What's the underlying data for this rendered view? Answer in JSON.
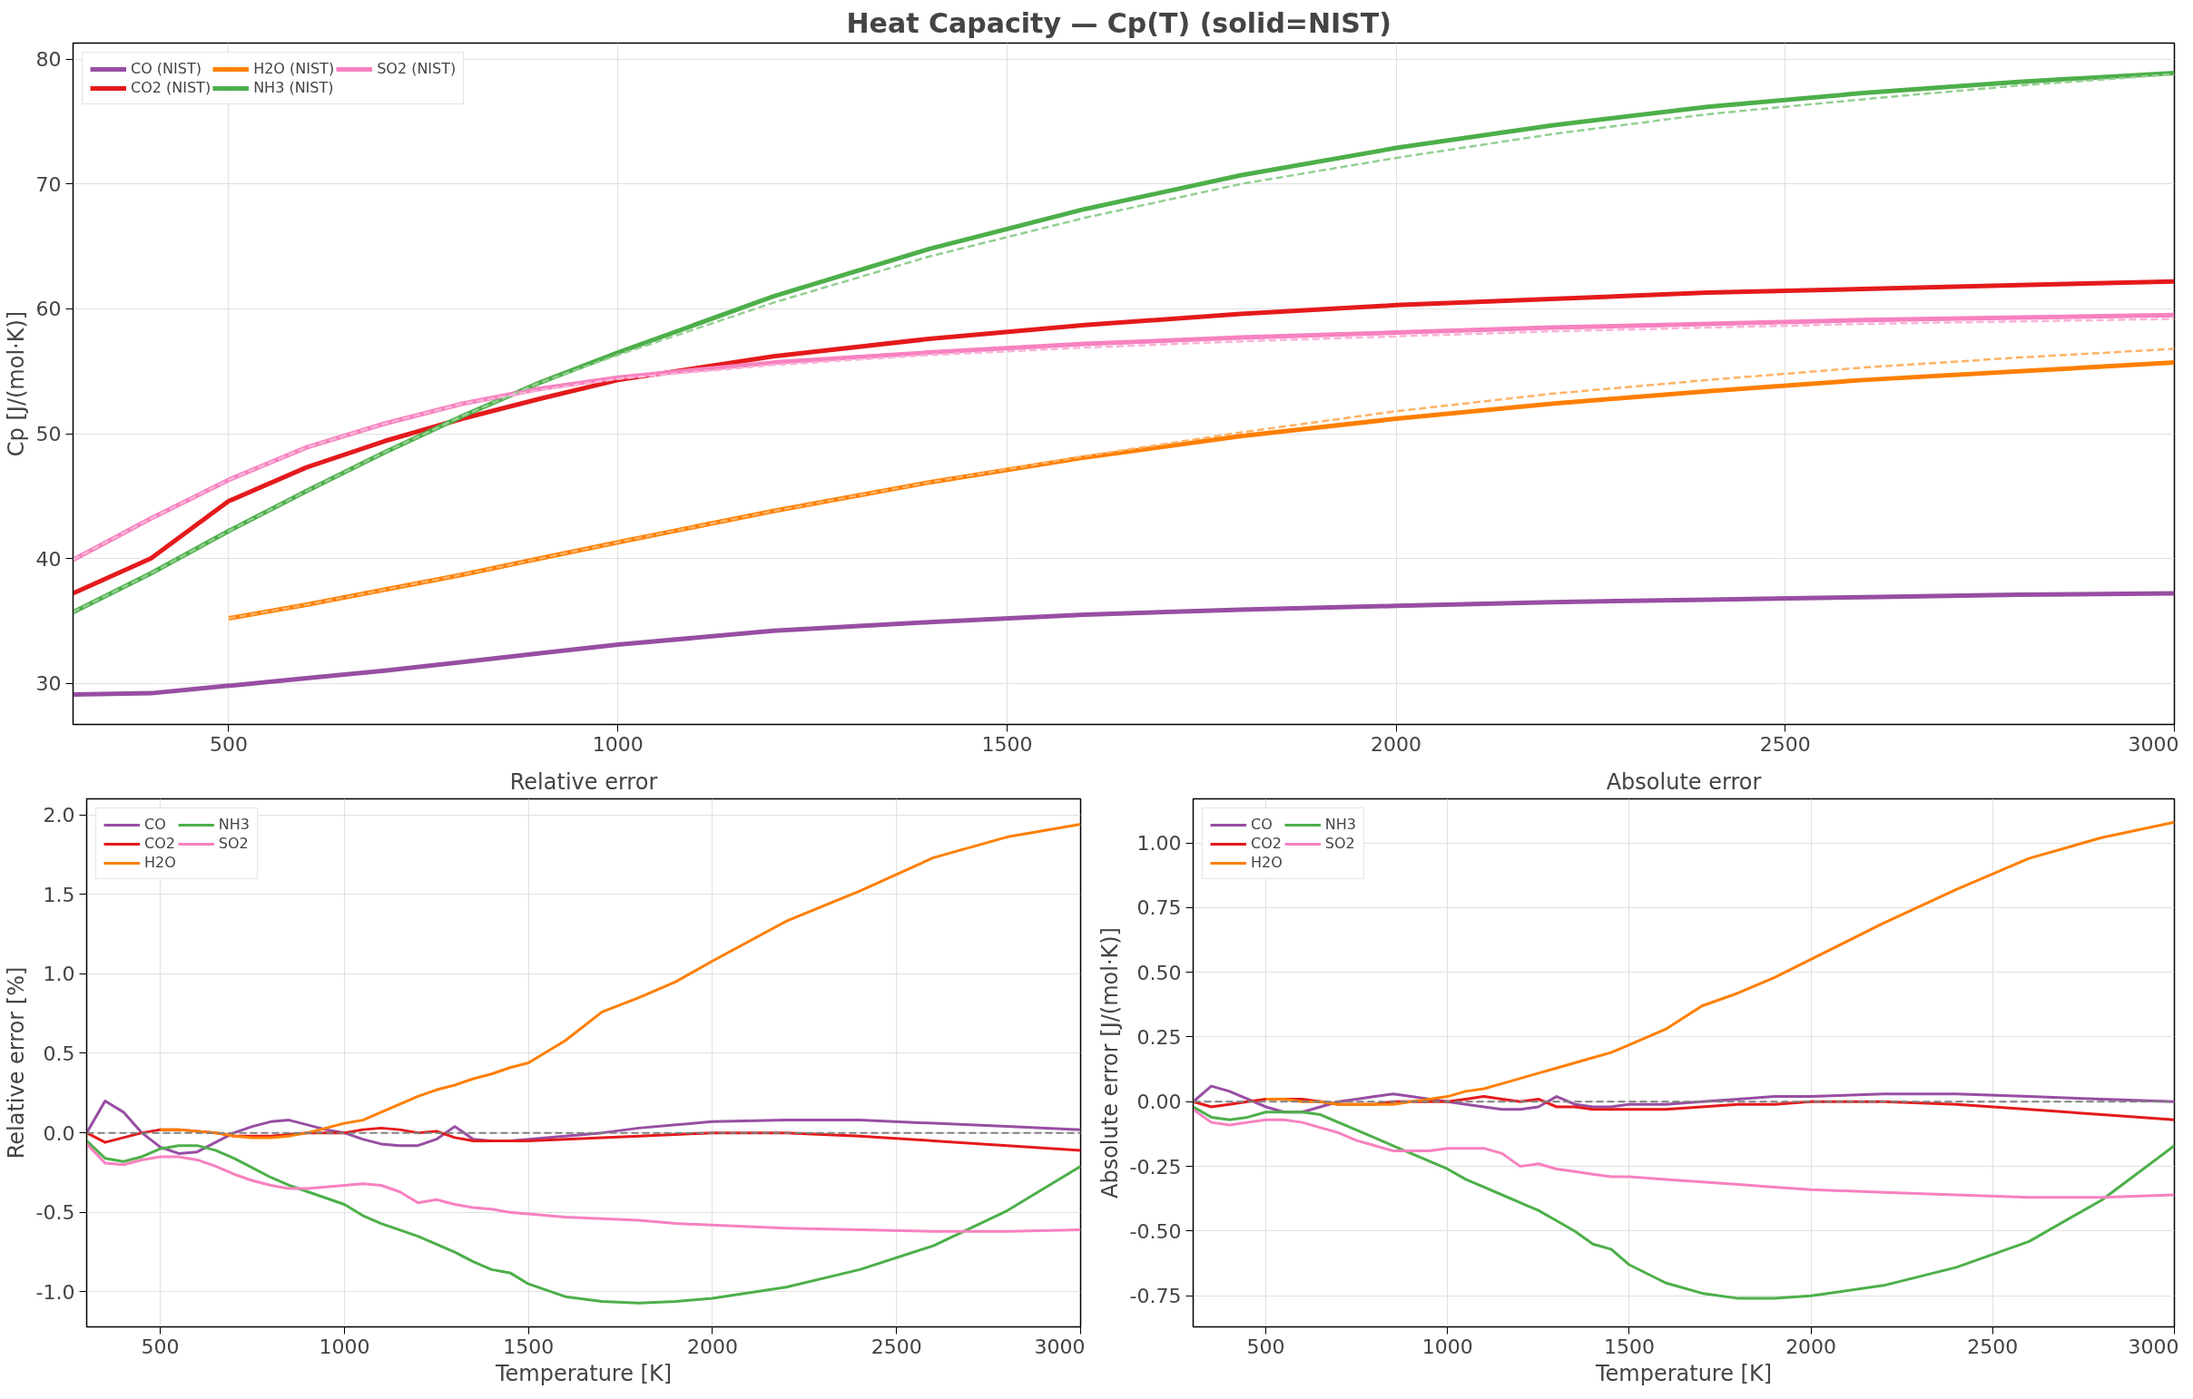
{
  "chart_data": [
    {
      "type": "line",
      "title": "Heat Capacity — Cp(T)  (solid=NIST)",
      "ylabel": "Cp [J/(mol·K)]",
      "x": [
        300,
        400,
        500,
        600,
        700,
        800,
        900,
        1000,
        1200,
        1400,
        1600,
        1800,
        2000,
        2200,
        2400,
        2600,
        2800,
        3000
      ],
      "xlim": [
        300,
        3000
      ],
      "ylim": [
        26.7,
        81.3
      ],
      "xticks": [
        500,
        1000,
        1500,
        2000,
        2500,
        3000
      ],
      "yticks": [
        30,
        40,
        50,
        60,
        70,
        80
      ],
      "grid": true,
      "legend": "top left",
      "line_style": "solid",
      "series": [
        {
          "name": "CO (NIST)",
          "color": "#984ea3",
          "values": [
            29.1,
            29.2,
            29.8,
            30.4,
            31.0,
            31.7,
            32.4,
            33.1,
            34.2,
            34.9,
            35.5,
            35.9,
            36.2,
            36.5,
            36.7,
            36.9,
            37.1,
            37.2
          ]
        },
        {
          "name": "CO2 (NIST)",
          "color": "#e41a1c",
          "values": [
            37.2,
            40.0,
            44.6,
            47.3,
            49.4,
            51.2,
            52.8,
            54.3,
            56.2,
            57.6,
            58.7,
            59.6,
            60.3,
            60.8,
            61.3,
            61.6,
            61.9,
            62.2
          ]
        },
        {
          "name": "H2O (NIST)",
          "color": "#ff7f00",
          "values": [
            null,
            null,
            35.2,
            36.3,
            37.5,
            38.7,
            40.0,
            41.3,
            43.8,
            46.1,
            48.1,
            49.8,
            51.2,
            52.4,
            53.4,
            54.3,
            55.0,
            55.7
          ]
        },
        {
          "name": "NH3 (NIST)",
          "color": "#4daf4a",
          "values": [
            35.7,
            38.8,
            42.2,
            45.4,
            48.5,
            51.4,
            54.1,
            56.5,
            61.0,
            64.8,
            68.0,
            70.7,
            72.9,
            74.7,
            76.2,
            77.3,
            78.2,
            78.9
          ]
        },
        {
          "name": "SO2 (NIST)",
          "color": "#f781bf",
          "values": [
            39.9,
            43.2,
            46.3,
            48.9,
            50.8,
            52.4,
            53.6,
            54.5,
            55.7,
            56.5,
            57.2,
            57.7,
            58.1,
            58.5,
            58.8,
            59.1,
            59.3,
            59.5
          ]
        },
        {
          "color": "#ffb266",
          "line_style": "dashed",
          "values": [
            null,
            null,
            35.2,
            36.3,
            37.5,
            38.7,
            40.0,
            41.3,
            43.8,
            46.1,
            48.2,
            50.1,
            51.8,
            53.2,
            54.3,
            55.3,
            56.1,
            56.8
          ]
        },
        {
          "color": "#94cf92",
          "line_style": "dashed",
          "values": [
            35.7,
            38.8,
            42.2,
            45.4,
            48.5,
            51.4,
            54.1,
            56.3,
            60.5,
            64.2,
            67.3,
            70.0,
            72.1,
            74.0,
            75.6,
            76.8,
            77.9,
            78.8
          ]
        },
        {
          "color": "#fab3d9",
          "line_style": "dashed",
          "values": [
            39.9,
            43.2,
            46.3,
            48.9,
            50.8,
            52.4,
            53.5,
            54.4,
            55.5,
            56.3,
            56.9,
            57.4,
            57.8,
            58.2,
            58.5,
            58.8,
            59.0,
            59.2
          ]
        }
      ]
    },
    {
      "type": "line",
      "title": "Relative error",
      "xlabel": "Temperature [K]",
      "ylabel": "Relative error [%]",
      "x": [
        300,
        350,
        400,
        450,
        500,
        550,
        600,
        650,
        700,
        750,
        800,
        850,
        900,
        950,
        1000,
        1050,
        1100,
        1150,
        1200,
        1250,
        1300,
        1350,
        1400,
        1450,
        1500,
        1600,
        1700,
        1800,
        1900,
        2000,
        2200,
        2400,
        2600,
        2800,
        3000
      ],
      "xlim": [
        300,
        3000
      ],
      "ylim": [
        -1.22,
        2.1
      ],
      "xticks": [
        500,
        1000,
        1500,
        2000,
        2500,
        3000
      ],
      "yticks": [
        {
          "value": -1.0,
          "label": "-1.0"
        },
        {
          "value": -0.5,
          "label": "-0.5"
        },
        {
          "value": 0,
          "label": "0.0"
        },
        {
          "value": 0.5,
          "label": "0.5"
        },
        {
          "value": 1,
          "label": "1.0"
        },
        {
          "value": 1.5,
          "label": "1.5"
        },
        {
          "value": 2,
          "label": "2.0"
        }
      ],
      "grid": true,
      "legend": "top left",
      "line_style": "solid",
      "ref_lines": [
        {
          "axis": "y",
          "value": 0,
          "color": "#808080",
          "line_style": "dashed"
        }
      ],
      "series": [
        {
          "name": "CO",
          "color": "#984ea3",
          "values": [
            0,
            0.2,
            0.13,
            0.0,
            -0.09,
            -0.13,
            -0.12,
            -0.06,
            0.0,
            0.04,
            0.07,
            0.08,
            0.05,
            0.02,
            0.0,
            -0.04,
            -0.07,
            -0.08,
            -0.08,
            -0.04,
            0.04,
            -0.04,
            -0.05,
            -0.05,
            -0.04,
            -0.02,
            0.0,
            0.03,
            0.05,
            0.07,
            0.08,
            0.08,
            0.06,
            0.04,
            0.02
          ]
        },
        {
          "name": "CO2",
          "color": "#e41a1c",
          "values": [
            0,
            -0.06,
            -0.03,
            0.0,
            0.02,
            0.02,
            0.01,
            0.0,
            -0.02,
            -0.02,
            -0.02,
            -0.01,
            0.0,
            0.0,
            0.0,
            0.02,
            0.03,
            0.02,
            0.0,
            0.01,
            -0.03,
            -0.05,
            -0.05,
            -0.05,
            -0.05,
            -0.04,
            -0.03,
            -0.02,
            -0.01,
            0.0,
            0.0,
            -0.02,
            -0.05,
            -0.08,
            -0.11
          ]
        },
        {
          "name": "H2O",
          "color": "#ff7f00",
          "values": [
            null,
            null,
            null,
            null,
            0.02,
            0.02,
            0.01,
            0.0,
            -0.02,
            -0.03,
            -0.03,
            -0.02,
            0.0,
            0.03,
            0.06,
            0.08,
            0.13,
            0.18,
            0.23,
            0.27,
            0.3,
            0.34,
            0.37,
            0.41,
            0.44,
            0.58,
            0.76,
            0.85,
            0.95,
            1.08,
            1.33,
            1.52,
            1.73,
            1.86,
            1.94
          ]
        },
        {
          "name": "NH3",
          "color": "#4daf4a",
          "values": [
            -0.05,
            -0.16,
            -0.18,
            -0.15,
            -0.1,
            -0.08,
            -0.08,
            -0.11,
            -0.16,
            -0.22,
            -0.28,
            -0.33,
            -0.37,
            -0.41,
            -0.45,
            -0.52,
            -0.57,
            -0.61,
            -0.65,
            -0.7,
            -0.75,
            -0.81,
            -0.86,
            -0.88,
            -0.95,
            -1.03,
            -1.06,
            -1.07,
            -1.06,
            -1.04,
            -0.97,
            -0.86,
            -0.71,
            -0.49,
            -0.21
          ]
        },
        {
          "name": "SO2",
          "color": "#f781bf",
          "values": [
            -0.07,
            -0.19,
            -0.2,
            -0.17,
            -0.15,
            -0.15,
            -0.17,
            -0.21,
            -0.26,
            -0.3,
            -0.33,
            -0.35,
            -0.35,
            -0.34,
            -0.33,
            -0.32,
            -0.33,
            -0.37,
            -0.44,
            -0.42,
            -0.45,
            -0.47,
            -0.48,
            -0.5,
            -0.51,
            -0.53,
            -0.54,
            -0.55,
            -0.57,
            -0.58,
            -0.6,
            -0.61,
            -0.62,
            -0.62,
            -0.61
          ]
        }
      ]
    },
    {
      "type": "line",
      "title": "Absolute error",
      "xlabel": "Temperature [K]",
      "ylabel": "Absolute error [J/(mol·K)]",
      "x": [
        300,
        350,
        400,
        450,
        500,
        550,
        600,
        650,
        700,
        750,
        800,
        850,
        900,
        950,
        1000,
        1050,
        1100,
        1150,
        1200,
        1250,
        1300,
        1350,
        1400,
        1450,
        1500,
        1600,
        1700,
        1800,
        1900,
        2000,
        2200,
        2400,
        2600,
        2800,
        3000
      ],
      "xlim": [
        300,
        3000
      ],
      "ylim": [
        -0.87,
        1.17
      ],
      "xticks": [
        500,
        1000,
        1500,
        2000,
        2500,
        3000
      ],
      "yticks": [
        {
          "value": -0.75,
          "label": "-0.75"
        },
        {
          "value": -0.5,
          "label": "-0.50"
        },
        {
          "value": -0.25,
          "label": "-0.25"
        },
        {
          "value": 0,
          "label": "0.00"
        },
        {
          "value": 0.25,
          "label": "0.25"
        },
        {
          "value": 0.5,
          "label": "0.50"
        },
        {
          "value": 0.75,
          "label": "0.75"
        },
        {
          "value": 1,
          "label": "1.00"
        }
      ],
      "grid": true,
      "legend": "top left",
      "line_style": "solid",
      "ref_lines": [
        {
          "axis": "y",
          "value": 0,
          "color": "#808080",
          "line_style": "dashed"
        }
      ],
      "series": [
        {
          "name": "CO",
          "color": "#984ea3",
          "values": [
            0,
            0.06,
            0.04,
            0.01,
            -0.02,
            -0.04,
            -0.04,
            -0.02,
            0.0,
            0.01,
            0.02,
            0.03,
            0.02,
            0.01,
            0.0,
            -0.01,
            -0.02,
            -0.03,
            -0.03,
            -0.02,
            0.02,
            -0.01,
            -0.02,
            -0.02,
            -0.01,
            -0.01,
            0.0,
            0.01,
            0.02,
            0.02,
            0.03,
            0.03,
            0.02,
            0.01,
            0.0
          ]
        },
        {
          "name": "CO2",
          "color": "#e41a1c",
          "values": [
            0,
            -0.02,
            -0.01,
            0.0,
            0.01,
            0.01,
            0.01,
            0.0,
            -0.01,
            -0.01,
            -0.01,
            0.0,
            0.0,
            0.0,
            0.0,
            0.01,
            0.02,
            0.01,
            0.0,
            0.01,
            -0.02,
            -0.02,
            -0.03,
            -0.03,
            -0.03,
            -0.03,
            -0.02,
            -0.01,
            -0.01,
            0.0,
            0.0,
            -0.01,
            -0.03,
            -0.05,
            -0.07
          ]
        },
        {
          "name": "H2O",
          "color": "#ff7f00",
          "values": [
            null,
            null,
            null,
            null,
            0.01,
            0.01,
            0.0,
            0.0,
            -0.01,
            -0.01,
            -0.01,
            -0.01,
            0.0,
            0.01,
            0.02,
            0.04,
            0.05,
            0.07,
            0.09,
            0.11,
            0.13,
            0.15,
            0.17,
            0.19,
            0.22,
            0.28,
            0.37,
            0.42,
            0.48,
            0.55,
            0.69,
            0.82,
            0.94,
            1.02,
            1.08
          ]
        },
        {
          "name": "NH3",
          "color": "#4daf4a",
          "values": [
            -0.02,
            -0.06,
            -0.07,
            -0.06,
            -0.04,
            -0.04,
            -0.04,
            -0.05,
            -0.08,
            -0.11,
            -0.14,
            -0.17,
            -0.2,
            -0.23,
            -0.26,
            -0.3,
            -0.33,
            -0.36,
            -0.39,
            -0.42,
            -0.46,
            -0.5,
            -0.55,
            -0.57,
            -0.63,
            -0.7,
            -0.74,
            -0.76,
            -0.76,
            -0.75,
            -0.71,
            -0.64,
            -0.54,
            -0.38,
            -0.17
          ]
        },
        {
          "name": "SO2",
          "color": "#f781bf",
          "values": [
            -0.03,
            -0.08,
            -0.09,
            -0.08,
            -0.07,
            -0.07,
            -0.08,
            -0.1,
            -0.12,
            -0.15,
            -0.17,
            -0.19,
            -0.19,
            -0.19,
            -0.18,
            -0.18,
            -0.18,
            -0.2,
            -0.25,
            -0.24,
            -0.26,
            -0.27,
            -0.28,
            -0.29,
            -0.29,
            -0.3,
            -0.31,
            -0.32,
            -0.33,
            -0.34,
            -0.35,
            -0.36,
            -0.37,
            -0.37,
            -0.36
          ]
        }
      ]
    }
  ]
}
